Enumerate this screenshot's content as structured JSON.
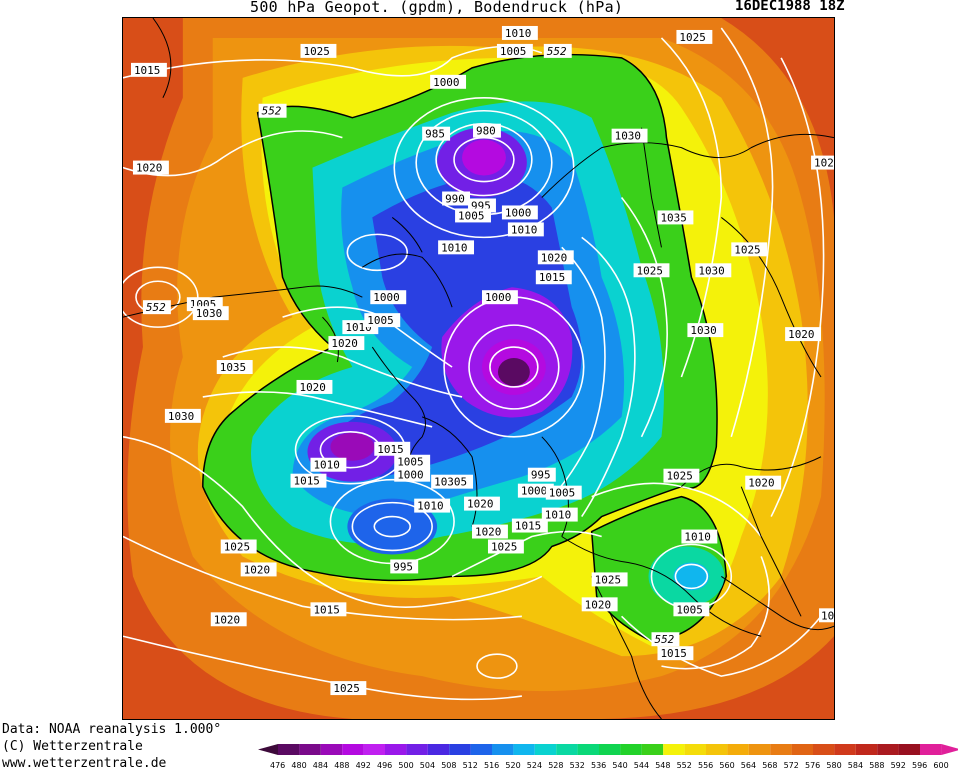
{
  "header": {
    "title": "500 hPa Geopot. (gpdm), Bodendruck (hPa)",
    "datetime": "16DEC1988 18Z"
  },
  "footer": {
    "data_source": "Data: NOAA reanalysis 1.000°",
    "copyright": "(C) Wetterzentrale",
    "website": "www.wetterzentrale.de"
  },
  "legend": {
    "values": [
      "476",
      "480",
      "484",
      "488",
      "492",
      "496",
      "500",
      "504",
      "508",
      "512",
      "516",
      "520",
      "524",
      "528",
      "532",
      "536",
      "540",
      "544",
      "548",
      "552",
      "556",
      "560",
      "564",
      "568",
      "572",
      "576",
      "580",
      "584",
      "588",
      "592",
      "596",
      "600"
    ],
    "colors": [
      "#3d0a3a",
      "#5a0a62",
      "#7a0a8a",
      "#9a0ab8",
      "#b40ae0",
      "#c020f0",
      "#9a18ea",
      "#7220e6",
      "#4a28e2",
      "#2a40e2",
      "#1e64ea",
      "#1690ee",
      "#10b6ee",
      "#0ad2d0",
      "#0ad8a2",
      "#0ad878",
      "#10d450",
      "#22d22a",
      "#3ad01a",
      "#f4f20a",
      "#f4dc0a",
      "#f4c40a",
      "#f4ac0a",
      "#ee9410",
      "#e87c14",
      "#e06414",
      "#d84e18",
      "#d03a1c",
      "#c0281c",
      "#aa1a20",
      "#981020",
      "#e0209a"
    ]
  },
  "map": {
    "geopotential_label": "552",
    "pressure_labels": [
      {
        "text": "1025"
      },
      {
        "text": "1010"
      },
      {
        "text": "1005"
      },
      {
        "text": "552"
      },
      {
        "text": "1025"
      },
      {
        "text": "1015"
      },
      {
        "text": "1000"
      },
      {
        "text": "552"
      },
      {
        "text": "985"
      },
      {
        "text": "980"
      },
      {
        "text": "1030"
      },
      {
        "text": "1020"
      },
      {
        "text": "102"
      },
      {
        "text": "990"
      },
      {
        "text": "995"
      },
      {
        "text": "1005"
      },
      {
        "text": "1000"
      },
      {
        "text": "1010"
      },
      {
        "text": "1035"
      },
      {
        "text": "1010"
      },
      {
        "text": "1020"
      },
      {
        "text": "1025"
      },
      {
        "text": "1030"
      },
      {
        "text": "1025"
      },
      {
        "text": "1015"
      },
      {
        "text": "552"
      },
      {
        "text": "1005"
      },
      {
        "text": "1030"
      },
      {
        "text": "1000"
      },
      {
        "text": "1000"
      },
      {
        "text": "1010"
      },
      {
        "text": "1005"
      },
      {
        "text": "1030"
      },
      {
        "text": "1020"
      },
      {
        "text": "1020"
      },
      {
        "text": "1035"
      },
      {
        "text": "1020"
      },
      {
        "text": "1030"
      },
      {
        "text": "1015"
      },
      {
        "text": "1010"
      },
      {
        "text": "1005"
      },
      {
        "text": "1000"
      },
      {
        "text": "10305"
      },
      {
        "text": "995"
      },
      {
        "text": "1000"
      },
      {
        "text": "1005"
      },
      {
        "text": "1025"
      },
      {
        "text": "1020"
      },
      {
        "text": "1015"
      },
      {
        "text": "1010"
      },
      {
        "text": "1020"
      },
      {
        "text": "1010"
      },
      {
        "text": "1020"
      },
      {
        "text": "1015"
      },
      {
        "text": "1025"
      },
      {
        "text": "1010"
      },
      {
        "text": "1025"
      },
      {
        "text": "1020"
      },
      {
        "text": "995"
      },
      {
        "text": "1025"
      },
      {
        "text": "1020"
      },
      {
        "text": "1005"
      },
      {
        "text": "1015"
      },
      {
        "text": "1020"
      },
      {
        "text": "552"
      },
      {
        "text": "1015"
      },
      {
        "text": "1020"
      },
      {
        "text": "1025"
      },
      {
        "text": "10"
      }
    ]
  }
}
